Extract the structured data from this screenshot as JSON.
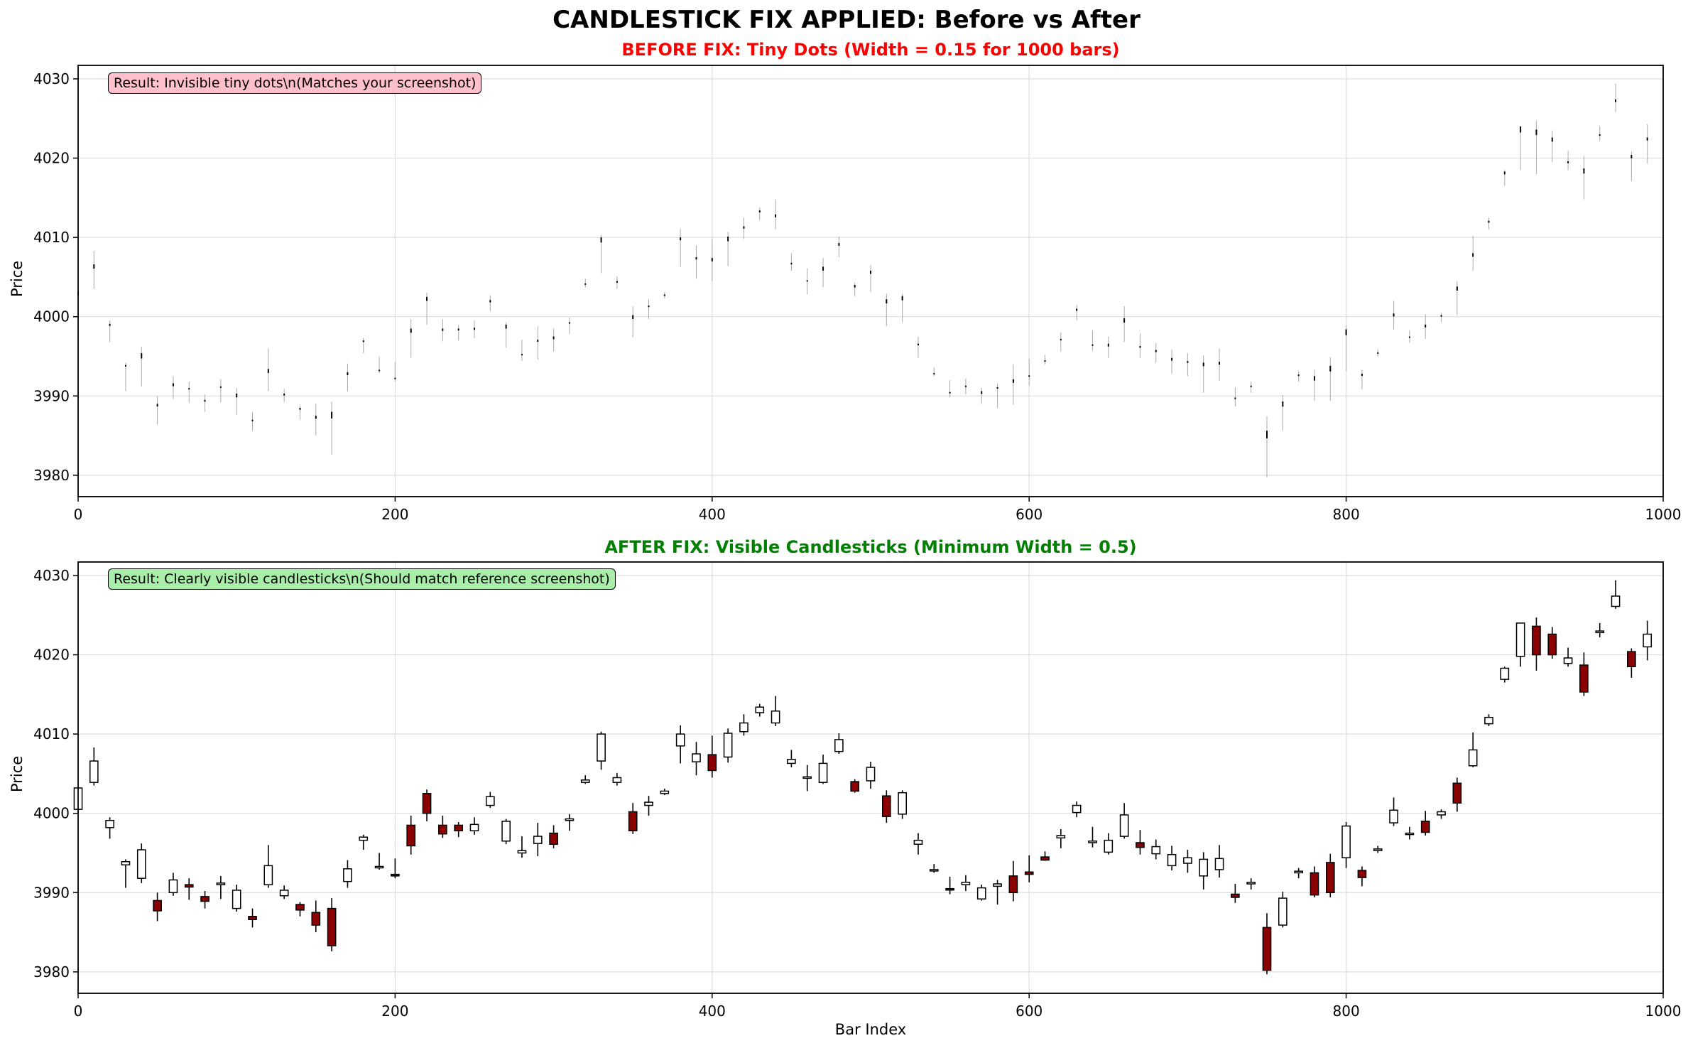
{
  "figure_title": "CANDLESTICK FIX APPLIED: Before vs After",
  "colors": {
    "before_title": "#ff0000",
    "after_title": "#008000",
    "up": "#ffffff",
    "down": "#8b0000",
    "edge": "#000000",
    "before_note_bg": "#ffc0cb",
    "after_note_bg": "#a8eea8",
    "grid": "#dddddd"
  },
  "chart_data": [
    {
      "type": "candlestick",
      "title": "BEFORE FIX: Tiny Dots (Width = 0.15 for 1000 bars)",
      "xlabel": "",
      "ylabel": "Price",
      "annotation": "Result: Invisible tiny dots\\n(Matches your screenshot)",
      "candle_width": 0.15,
      "xlim": [
        0,
        1000
      ],
      "ylim": [
        3977.3,
        4031.7
      ],
      "xticks": [
        0,
        200,
        400,
        600,
        800,
        1000
      ],
      "yticks": [
        3980,
        3990,
        4000,
        4010,
        4020,
        4030
      ],
      "grid": true
    },
    {
      "type": "candlestick",
      "title": "AFTER FIX: Visible Candlesticks (Minimum Width = 0.5)",
      "xlabel": "Bar Index",
      "ylabel": "Price",
      "annotation": "Result: Clearly visible candlesticks\\n(Should match reference screenshot)",
      "candle_width": 5,
      "xlim": [
        0,
        1000
      ],
      "ylim": [
        3977.3,
        4031.7
      ],
      "xticks": [
        0,
        200,
        400,
        600,
        800,
        1000
      ],
      "yticks": [
        3980,
        3990,
        4000,
        4010,
        4020,
        4030
      ],
      "grid": true
    }
  ],
  "ohlc": {
    "x": [
      0,
      10,
      20,
      30,
      40,
      50,
      60,
      70,
      80,
      90,
      100,
      110,
      120,
      130,
      140,
      150,
      160,
      170,
      180,
      190,
      200,
      210,
      220,
      230,
      240,
      250,
      260,
      270,
      280,
      290,
      300,
      310,
      320,
      330,
      340,
      350,
      360,
      370,
      380,
      390,
      400,
      410,
      420,
      430,
      440,
      450,
      460,
      470,
      480,
      490,
      500,
      510,
      520,
      530,
      540,
      550,
      560,
      570,
      580,
      590,
      600,
      610,
      620,
      630,
      640,
      650,
      660,
      670,
      680,
      690,
      700,
      710,
      720,
      730,
      740,
      750,
      760,
      770,
      780,
      790,
      800,
      810,
      820,
      830,
      840,
      850,
      860,
      870,
      880,
      890,
      900,
      910,
      920,
      930,
      940,
      950,
      960,
      970,
      980,
      990
    ],
    "open": [
      4000.5,
      4003.9,
      3998.2,
      3993.5,
      3991.8,
      3989.0,
      3990.0,
      3991.0,
      3989.5,
      3991.0,
      3988.0,
      3987.0,
      3991.0,
      3989.6,
      3988.5,
      3987.5,
      3988.0,
      3991.4,
      3996.6,
      3993.2,
      3992.3,
      3998.5,
      4002.5,
      3998.5,
      3998.5,
      3997.8,
      4001.0,
      3996.5,
      3995.0,
      3996.2,
      3997.5,
      3999.1,
      4003.9,
      4006.6,
      4003.9,
      4000.2,
      4001.0,
      4002.5,
      4008.5,
      4006.5,
      4007.4,
      4007.1,
      4010.3,
      4012.7,
      4011.4,
      4006.3,
      4004.5,
      4003.9,
      4007.8,
      4004.0,
      4004.1,
      4002.2,
      3999.9,
      3996.1,
      3992.8,
      3990.5,
      3991.0,
      3989.2,
      3990.8,
      3992.1,
      3992.6,
      3994.5,
      3996.9,
      4000.1,
      3996.3,
      3995.1,
      3997.1,
      3996.3,
      3994.9,
      3993.4,
      3993.7,
      3992.1,
      3992.9,
      3989.8,
      3991.1,
      3985.6,
      3985.9,
      3992.5,
      3992.5,
      3993.8,
      3994.4,
      3992.8,
      3995.3,
      3998.8,
      3997.4,
      3999.0,
      3999.8,
      4003.8,
      4006.0,
      4011.3,
      4016.9,
      4019.8,
      4023.6,
      4022.6,
      4018.9,
      4018.7,
      4022.8,
      4026.1,
      4020.4,
      4021.0
    ],
    "close": [
      4003.2,
      4006.6,
      3999.1,
      3993.9,
      3995.4,
      3987.7,
      3991.6,
      3990.7,
      3988.9,
      3991.2,
      3990.3,
      3986.6,
      3993.4,
      3990.3,
      3987.8,
      3985.9,
      3983.3,
      3993.0,
      3997.0,
      3993.3,
      3992.1,
      3995.9,
      4000.0,
      3997.4,
      3997.8,
      3998.6,
      4002.1,
      3999.0,
      3995.3,
      3997.1,
      3996.1,
      3999.3,
      4004.2,
      4010.0,
      4004.5,
      3997.8,
      4001.4,
      4002.8,
      4010.0,
      4007.5,
      4005.4,
      4010.1,
      4011.4,
      4013.4,
      4012.9,
      4006.8,
      4004.6,
      4006.3,
      4009.3,
      4002.8,
      4005.8,
      3999.6,
      4002.6,
      3996.6,
      3992.9,
      3990.4,
      3991.3,
      3990.6,
      3991.1,
      3990.0,
      3992.3,
      3994.1,
      3997.2,
      4001.0,
      3996.5,
      3996.6,
      3999.8,
      3995.7,
      3995.8,
      3994.8,
      3994.4,
      3994.2,
      3994.3,
      3989.4,
      3991.3,
      3980.2,
      3989.3,
      3992.7,
      3989.7,
      3990.0,
      3998.4,
      3991.9,
      3995.5,
      4000.4,
      3997.5,
      3997.6,
      4000.2,
      4001.3,
      4008.0,
      4012.1,
      4018.3,
      4024.0,
      4020.0,
      4020.0,
      4019.6,
      4015.3,
      4023.0,
      4027.4,
      4018.5,
      4022.6
    ],
    "high": [
      4001.5,
      4008.3,
      3999.5,
      3994.2,
      3996.2,
      3990.0,
      3992.5,
      3991.8,
      3990.2,
      3992.1,
      3991.0,
      3988.0,
      3996.0,
      3990.9,
      3988.8,
      3989.0,
      3989.3,
      3994.1,
      3997.3,
      3995.0,
      3994.3,
      3999.7,
      4003.0,
      3999.7,
      3998.9,
      3999.5,
      4002.7,
      3999.3,
      3997.1,
      3998.8,
      3998.5,
      3999.9,
      4004.8,
      4010.3,
      4005.1,
      4001.3,
      4002.2,
      4003.1,
      4011.1,
      4009.0,
      4009.8,
      4010.7,
      4012.5,
      4013.8,
      4014.8,
      4008.0,
      4006.1,
      4007.4,
      4010.1,
      4004.3,
      4006.5,
      4002.9,
      4002.9,
      3997.5,
      3993.6,
      3992.0,
      3992.2,
      3991.0,
      3991.6,
      3994.0,
      3994.7,
      3995.2,
      3998.0,
      4001.5,
      3998.3,
      3997.5,
      4001.3,
      3997.9,
      3996.7,
      3995.9,
      3995.4,
      3995.1,
      3996.0,
      3991.1,
      3991.8,
      3987.4,
      3990.1,
      3993.1,
      3993.3,
      3994.9,
      3998.9,
      3993.3,
      3995.9,
      4002.0,
      3998.3,
      4000.3,
      4000.5,
      4004.5,
      4010.2,
      4012.5,
      4018.5,
      4024.0,
      4024.7,
      4023.5,
      4020.9,
      4020.3,
      4024.0,
      4029.4,
      4020.8,
      4024.3
    ],
    "low": [
      4000.1,
      4003.5,
      3996.8,
      3990.6,
      3991.2,
      3986.4,
      3989.6,
      3989.1,
      3988.0,
      3989.2,
      3987.6,
      3985.6,
      3990.6,
      3989.2,
      3987.0,
      3985.0,
      3982.6,
      3990.6,
      3995.4,
      3992.9,
      3991.8,
      3994.8,
      3999.0,
      3996.9,
      3997.0,
      3997.3,
      4000.7,
      3996.1,
      3994.4,
      3994.6,
      3995.6,
      3997.8,
      4003.7,
      4005.5,
      4003.5,
      3997.4,
      3999.7,
      4002.3,
      4006.3,
      4004.8,
      4004.5,
      4006.4,
      4009.8,
      4012.2,
      4011.0,
      4005.8,
      4002.8,
      4003.7,
      4007.5,
      4002.6,
      4003.1,
      3998.8,
      3999.3,
      3994.8,
      3992.5,
      3989.8,
      3990.2,
      3989.0,
      3988.5,
      3988.9,
      3991.3,
      3994.0,
      3995.6,
      3999.5,
      3995.7,
      3994.8,
      3996.8,
      3994.8,
      3994.2,
      3992.8,
      3992.5,
      3990.4,
      3991.9,
      3988.7,
      3990.4,
      3979.7,
      3985.6,
      3991.8,
      3989.4,
      3989.4,
      3993.1,
      3990.8,
      3995.0,
      3998.4,
      3996.7,
      3997.2,
      3999.3,
      4000.2,
      4005.8,
      4011.0,
      4016.5,
      4018.5,
      4018.0,
      4019.5,
      4018.5,
      4014.8,
      4022.2,
      4025.8,
      4017.1,
      4019.3
    ]
  }
}
